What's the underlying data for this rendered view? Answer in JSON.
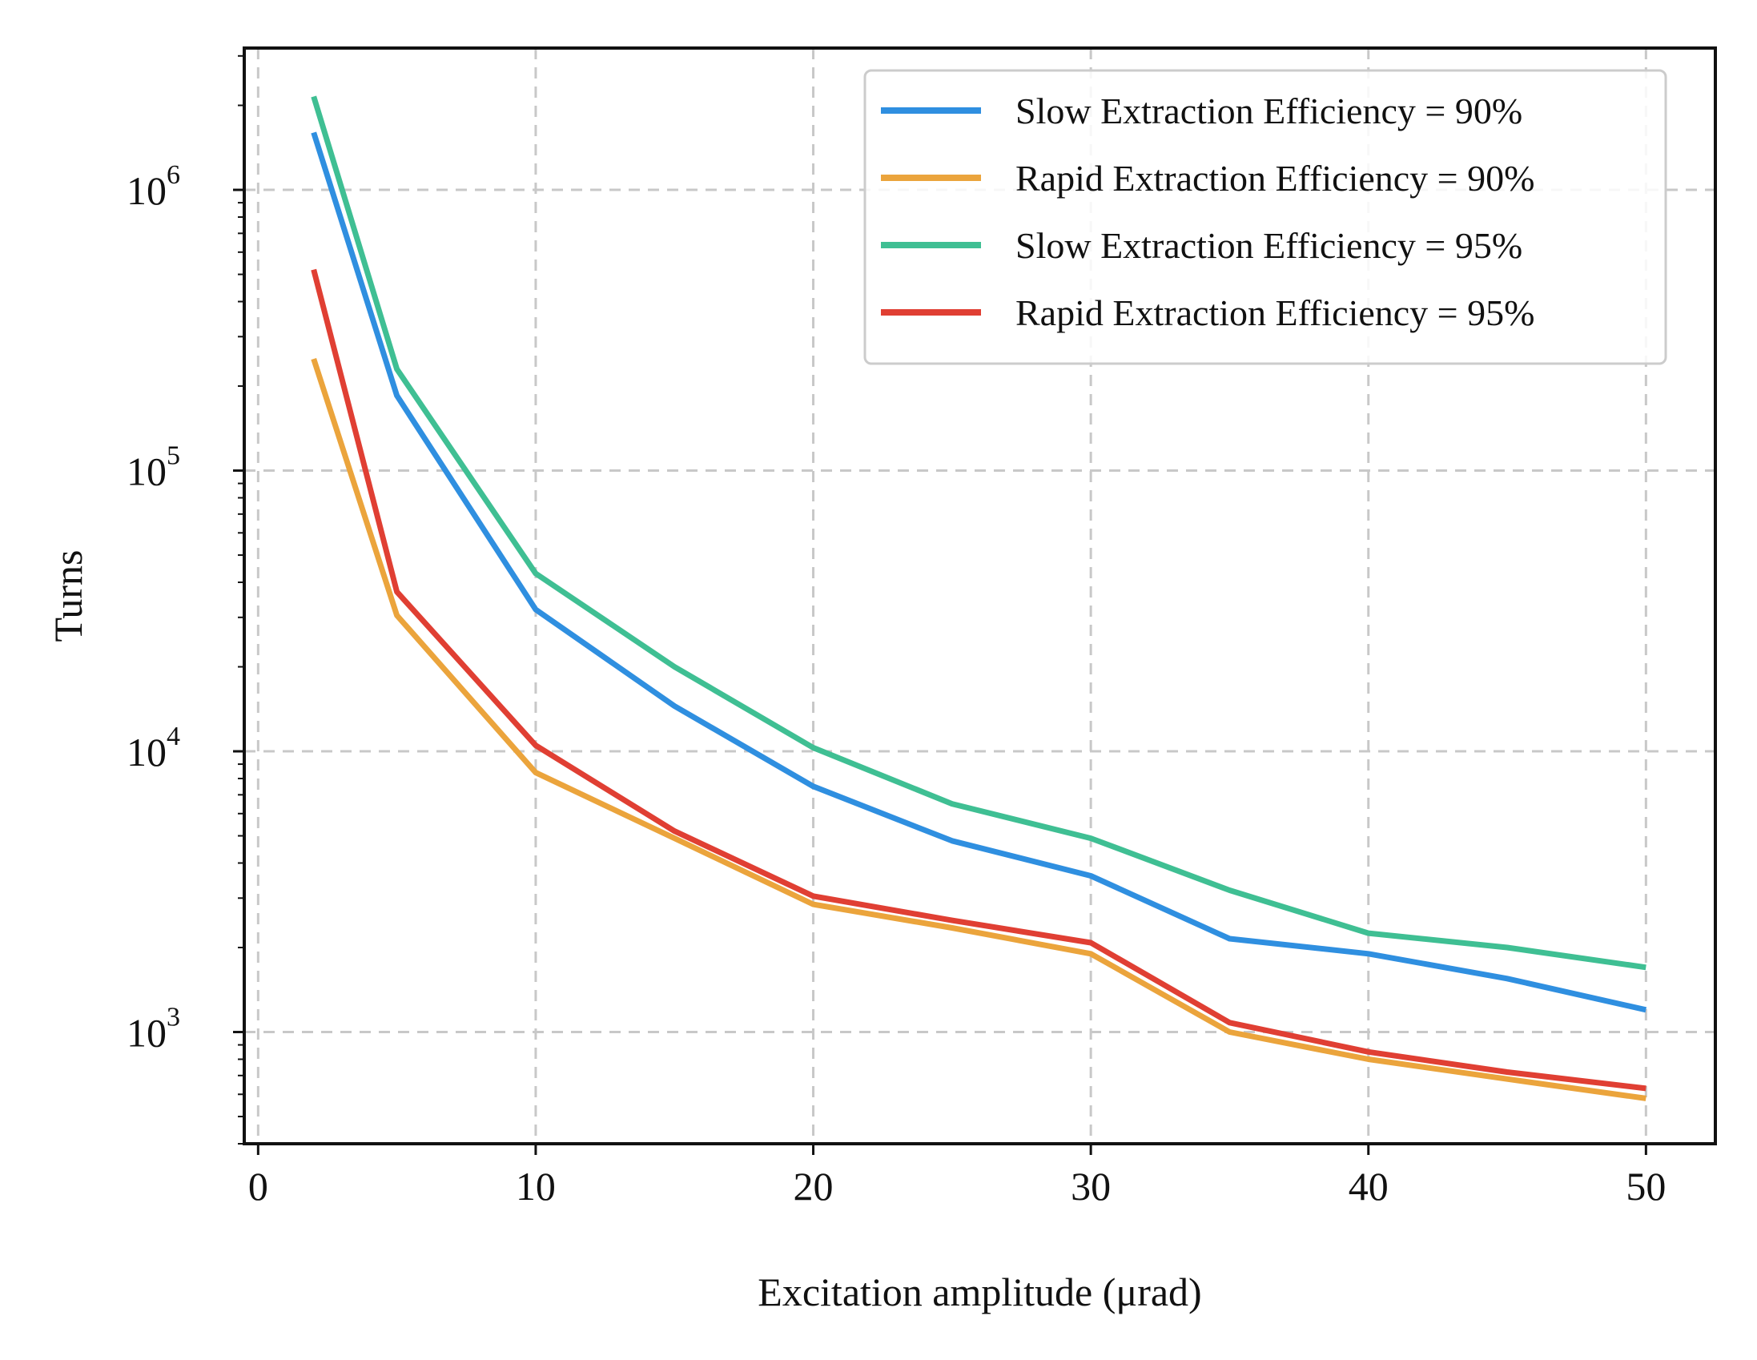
{
  "chart_data": {
    "type": "line",
    "xlabel": "Excitation amplitude (μrad)",
    "ylabel": "Turns",
    "xlim": [
      -0.5,
      52.5
    ],
    "ylim": [
      400,
      3200000
    ],
    "yscale": "log",
    "grid": true,
    "legend_position": "top-right",
    "x_ticks": [
      "0",
      "10",
      "20",
      "30",
      "40",
      "50"
    ],
    "y_ticks": [
      {
        "base": "10",
        "exp": "3"
      },
      {
        "base": "10",
        "exp": "4"
      },
      {
        "base": "10",
        "exp": "5"
      },
      {
        "base": "10",
        "exp": "6"
      }
    ],
    "x": [
      2,
      5,
      10,
      15,
      20,
      25,
      30,
      35,
      40,
      45,
      50
    ],
    "series": [
      {
        "name": "Slow Extraction Efficiency = 90%",
        "color": "#2f8fe0",
        "values": [
          1600000,
          185000,
          32000,
          14500,
          7500,
          4800,
          3600,
          2150,
          1900,
          1550,
          1200
        ]
      },
      {
        "name": "Rapid Extraction Efficiency = 90%",
        "color": "#eba43c",
        "values": [
          250000,
          30500,
          8400,
          4900,
          2850,
          2350,
          1900,
          1000,
          800,
          680,
          580
        ]
      },
      {
        "name": "Slow Extraction Efficiency = 95%",
        "color": "#3fbf93",
        "values": [
          2150000,
          230000,
          43000,
          20000,
          10300,
          6500,
          4900,
          3200,
          2250,
          2000,
          1700
        ]
      },
      {
        "name": "Rapid Extraction Efficiency = 95%",
        "color": "#e03f33",
        "values": [
          520000,
          37000,
          10500,
          5200,
          3050,
          2500,
          2080,
          1080,
          850,
          720,
          630
        ]
      }
    ]
  }
}
